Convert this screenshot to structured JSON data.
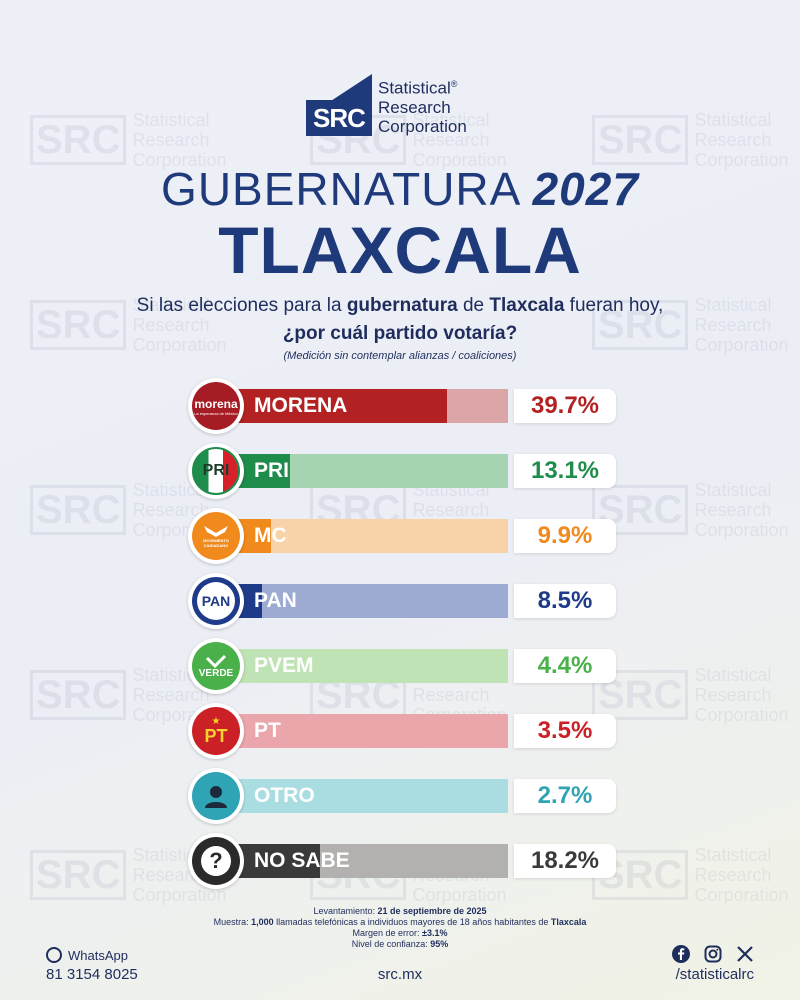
{
  "watermark": {
    "box": "SRC",
    "line1": "Statistical",
    "line2": "Research",
    "line3": "Corporation"
  },
  "logo": {
    "mark": "SRC",
    "line1": "Statistical",
    "reg": "®",
    "line2": "Research",
    "line3": "Corporation"
  },
  "title": {
    "prefix": "GUBERNATURA ",
    "year": "2027",
    "place": "TLAXCALA"
  },
  "question": {
    "p1": "Si las elecciones para la ",
    "b1": "gubernatura",
    "p2": " de ",
    "b2": "Tlaxcala",
    "p3": " fueran hoy,",
    "line2": "¿por cuál partido votaría?"
  },
  "note": "(Medición sin contemplar alianzas / coaliciones)",
  "chart_data": {
    "type": "bar",
    "orientation": "horizontal",
    "categories": [
      "MORENA",
      "PRI",
      "MC",
      "PAN",
      "PVEM",
      "PT",
      "OTRO",
      "NO SABE"
    ],
    "values": [
      39.7,
      13.1,
      9.9,
      8.5,
      4.4,
      3.5,
      2.7,
      18.2
    ],
    "labels": [
      "39.7%",
      "13.1%",
      "9.9%",
      "8.5%",
      "4.4%",
      "3.5%",
      "2.7%",
      "18.2%"
    ],
    "xlim": [
      0,
      50
    ],
    "colors": [
      "#b22222",
      "#1e8c4a",
      "#f08a1c",
      "#1e3b8a",
      "#49b04a",
      "#cc2027",
      "#2fa4b4",
      "#3a3a3a"
    ],
    "light_colors": [
      "#dca5a8",
      "#a6d3b2",
      "#f8d2a8",
      "#9daad2",
      "#bfe3b4",
      "#eaa6aa",
      "#a9dde2",
      "#b3b0b0"
    ],
    "pct_colors": [
      "#b22222",
      "#1e8c4a",
      "#f08a1c",
      "#1e3b8a",
      "#49b04a",
      "#cc2027",
      "#2fa4b4",
      "#3a3a3a"
    ]
  },
  "badges": {
    "morena": {
      "main": "morena",
      "sub": "La esperanza de México"
    },
    "pri": "PRI",
    "mc": "MOVIMIENTO CIUDADANO",
    "pan": "PAN",
    "pvem": "VERDE",
    "pt": "PT",
    "otro_icon": "person-icon",
    "nosabe": "?"
  },
  "footnote": {
    "l1_label": "Levantamiento: ",
    "l1_value": "21 de septiembre de 2025",
    "l2_label": "Muestra: ",
    "l2_value": "1,000",
    "l2_text": " llamadas telefónicas a individuos mayores de 18 años habitantes de ",
    "l2_place": "Tlaxcala",
    "l3_label": "Margen de error: ",
    "l3_value": "±3.1%",
    "l4_label": "Nivel de confianza: ",
    "l4_value": "95%"
  },
  "footer": {
    "whatsapp": "WhatsApp",
    "phone": "81 3154 8025",
    "site": "src.mx",
    "handle": "/statisticalrc"
  }
}
